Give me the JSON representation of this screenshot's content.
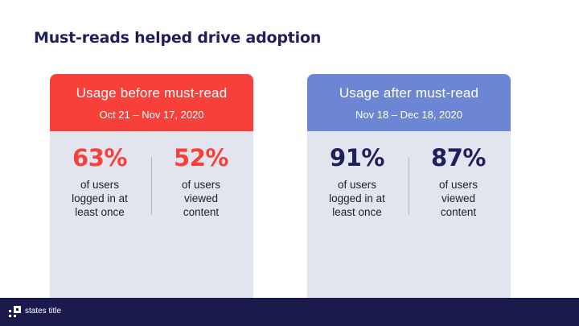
{
  "slide": {
    "title": "Must-reads helped drive adoption"
  },
  "cards": [
    {
      "title": "Usage before must-read",
      "range": "Oct 21 – Nov 17, 2020",
      "header_color": "#f7403a",
      "stats": [
        {
          "value": "63%",
          "desc": "of users\nlogged in at\nleast once"
        },
        {
          "value": "52%",
          "desc": "of users\nviewed\ncontent"
        }
      ]
    },
    {
      "title": "Usage after must-read",
      "range": "Nov 18 – Dec 18, 2020",
      "header_color": "#6d86d3",
      "stats": [
        {
          "value": "91%",
          "desc": "of users\nlogged in at\nleast once"
        },
        {
          "value": "87%",
          "desc": "of users\nviewed\ncontent"
        }
      ]
    }
  ],
  "footer": {
    "brand": "states title",
    "logo_icon": "states-title-logo-icon",
    "background": "#1a1a4d"
  }
}
